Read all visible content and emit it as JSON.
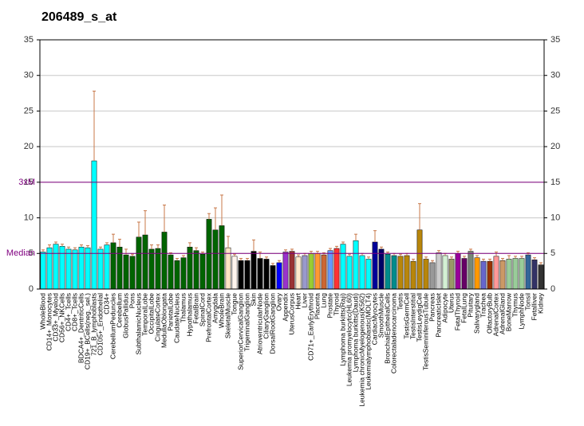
{
  "chart_data": {
    "type": "bar",
    "title": "206489_s_at",
    "categories": [
      "WholeBlood",
      "CD14+_Monocytes",
      "CD33+_Myeloid",
      "CD56+_NKCells",
      "CD4+_Tcells",
      "CD8+_Tcells",
      "BDCA4+_DentriticCells",
      "CD19+_BCells(neg._sel.)",
      "721_B_lymphoblasts",
      "CD105+_Endothelial",
      "CD34+",
      "CerebellumPeduncles",
      "Cerebellum",
      "GlobusPallidus",
      "Pons",
      "SubthalamicNucleus",
      "TemporalLobe",
      "OccipitalLobe",
      "CingulateCortex",
      "MedullaOblongata",
      "ParietalLobe",
      "CaudateNucleus",
      "Thalamus",
      "Hypothalamus",
      "FetalBrain",
      "SpinalCord",
      "PrefrontalCortex",
      "Amygdala",
      "WholeBrain",
      "SkeletalMuscle",
      "Tongue",
      "SuperiorCervicalGanglion",
      "TrigeminalGanglion",
      "Skin",
      "AtrioventricularNode",
      "CiliaryGanglion",
      "DorsalRootGanglion",
      "Ovary",
      "Appendix",
      "UterusCorpus",
      "Heart",
      "Liver",
      "CD71+_EarlyErythroid",
      "Placenta",
      "Lung",
      "Prostate",
      "Thyroid",
      "Lymphoma burkitts(Raji)",
      "Leukemia promyelocytic(HL60)",
      "Lymphoma burkitts(Daudi)",
      "Leukemia chronicMyelogenous(K562)",
      "Leukemialymphoblastic(MOLT4)",
      "CardiacMyocytes",
      "SmoothMuscle",
      "BronchialEpithelialCells",
      "Colorectaladenocarcinoma",
      "Testis",
      "TestisGermCell",
      "TestisInterstitial",
      "TestisLeydigCell",
      "TestisSeminiferousTubule",
      "Pancreas",
      "PancreaticIslet",
      "Adipocyte",
      "Uterus",
      "FetalThyroid",
      "FetalLung",
      "Pituitary",
      "Salivarygland",
      "Trachea",
      "OlfactoryBulb",
      "AdrenalCortex",
      "AdrenalGland",
      "BoneMarrow",
      "Thymus",
      "LymphNode",
      "Tonsil",
      "Fetalliver",
      "Kidney"
    ],
    "values": [
      5.2,
      5.8,
      6.3,
      6.0,
      5.6,
      5.5,
      5.9,
      5.8,
      18.0,
      5.6,
      6.2,
      6.5,
      5.9,
      4.8,
      4.6,
      7.3,
      7.6,
      5.6,
      5.7,
      8.0,
      4.8,
      4.0,
      4.4,
      5.9,
      5.4,
      4.9,
      9.8,
      8.3,
      8.9,
      5.8,
      4.6,
      4.0,
      4.0,
      5.3,
      4.3,
      4.2,
      3.3,
      3.7,
      5.2,
      5.3,
      4.5,
      4.7,
      5.0,
      5.0,
      4.8,
      5.4,
      5.7,
      6.3,
      4.6,
      6.8,
      4.7,
      4.2,
      6.6,
      5.6,
      4.9,
      4.7,
      4.6,
      4.7,
      3.9,
      8.3,
      4.2,
      3.7,
      5.1,
      4.7,
      4.2,
      5.0,
      4.3,
      5.3,
      4.4,
      3.9,
      3.9,
      4.6,
      4.0,
      4.2,
      4.3,
      4.3,
      4.8,
      4.1,
      3.4
    ],
    "errors": [
      0.3,
      0.4,
      0.3,
      0.3,
      0.3,
      0.3,
      0.3,
      0.3,
      9.8,
      0.3,
      0.3,
      1.2,
      1.1,
      0.8,
      0.3,
      2.1,
      3.4,
      0.6,
      0.5,
      3.8,
      0.3,
      0.3,
      0.3,
      0.6,
      0.4,
      0.3,
      0.8,
      3.1,
      4.3,
      1.6,
      0.3,
      0.3,
      0.3,
      1.6,
      0.9,
      0.3,
      0.3,
      0.3,
      0.3,
      0.3,
      0.3,
      0.3,
      0.3,
      0.3,
      0.3,
      0.3,
      0.3,
      0.3,
      0.3,
      0.9,
      0.3,
      0.3,
      1.6,
      0.3,
      0.3,
      0.3,
      0.3,
      0.3,
      0.3,
      3.7,
      0.3,
      0.3,
      0.3,
      0.3,
      0.3,
      0.3,
      0.3,
      0.3,
      0.3,
      0.3,
      0.3,
      0.6,
      0.3,
      0.5,
      0.3,
      0.3,
      0.3,
      0.3,
      0.3
    ],
    "colors": [
      "#00ffff",
      "#00ffff",
      "#00ffff",
      "#00ffff",
      "#00ffff",
      "#00ffff",
      "#00ffff",
      "#00ffff",
      "#00ffff",
      "#00ffff",
      "#00ffff",
      "#006400",
      "#006400",
      "#006400",
      "#006400",
      "#006400",
      "#006400",
      "#006400",
      "#006400",
      "#006400",
      "#006400",
      "#006400",
      "#006400",
      "#006400",
      "#006400",
      "#006400",
      "#006400",
      "#006400",
      "#006400",
      "#ffe4c4",
      "#fff5ee",
      "#000000",
      "#000000",
      "#000000",
      "#000000",
      "#000000",
      "#000000",
      "#0000ff",
      "#9933cc",
      "#993333",
      "#ffebcd",
      "#9999cc",
      "#99cc33",
      "#ff9933",
      "#cc6633",
      "#6699ff",
      "#ff3333",
      "#00ffff",
      "#00ffff",
      "#00ffff",
      "#00ffff",
      "#00ffff",
      "#000099",
      "#000066",
      "#008b8b",
      "#008b8b",
      "#b8860b",
      "#b8860b",
      "#b8860b",
      "#b8860b",
      "#b8860b",
      "#999999",
      "#cccccc",
      "#d3f0d3",
      "#999966",
      "#990099",
      "#660066",
      "#778877",
      "#ff9900",
      "#6666cc",
      "#993300",
      "#ff9999",
      "#cc9966",
      "#99cc99",
      "#99cc99",
      "#99cc99",
      "#336699",
      "#333366",
      "#333333"
    ],
    "reference_lines": [
      {
        "label": "Median",
        "value": 5
      },
      {
        "label": "3xM",
        "value": 15
      }
    ],
    "ylim": [
      0,
      35
    ],
    "yticks": [
      0,
      5,
      10,
      15,
      20,
      25,
      30,
      35
    ],
    "grid": true
  }
}
